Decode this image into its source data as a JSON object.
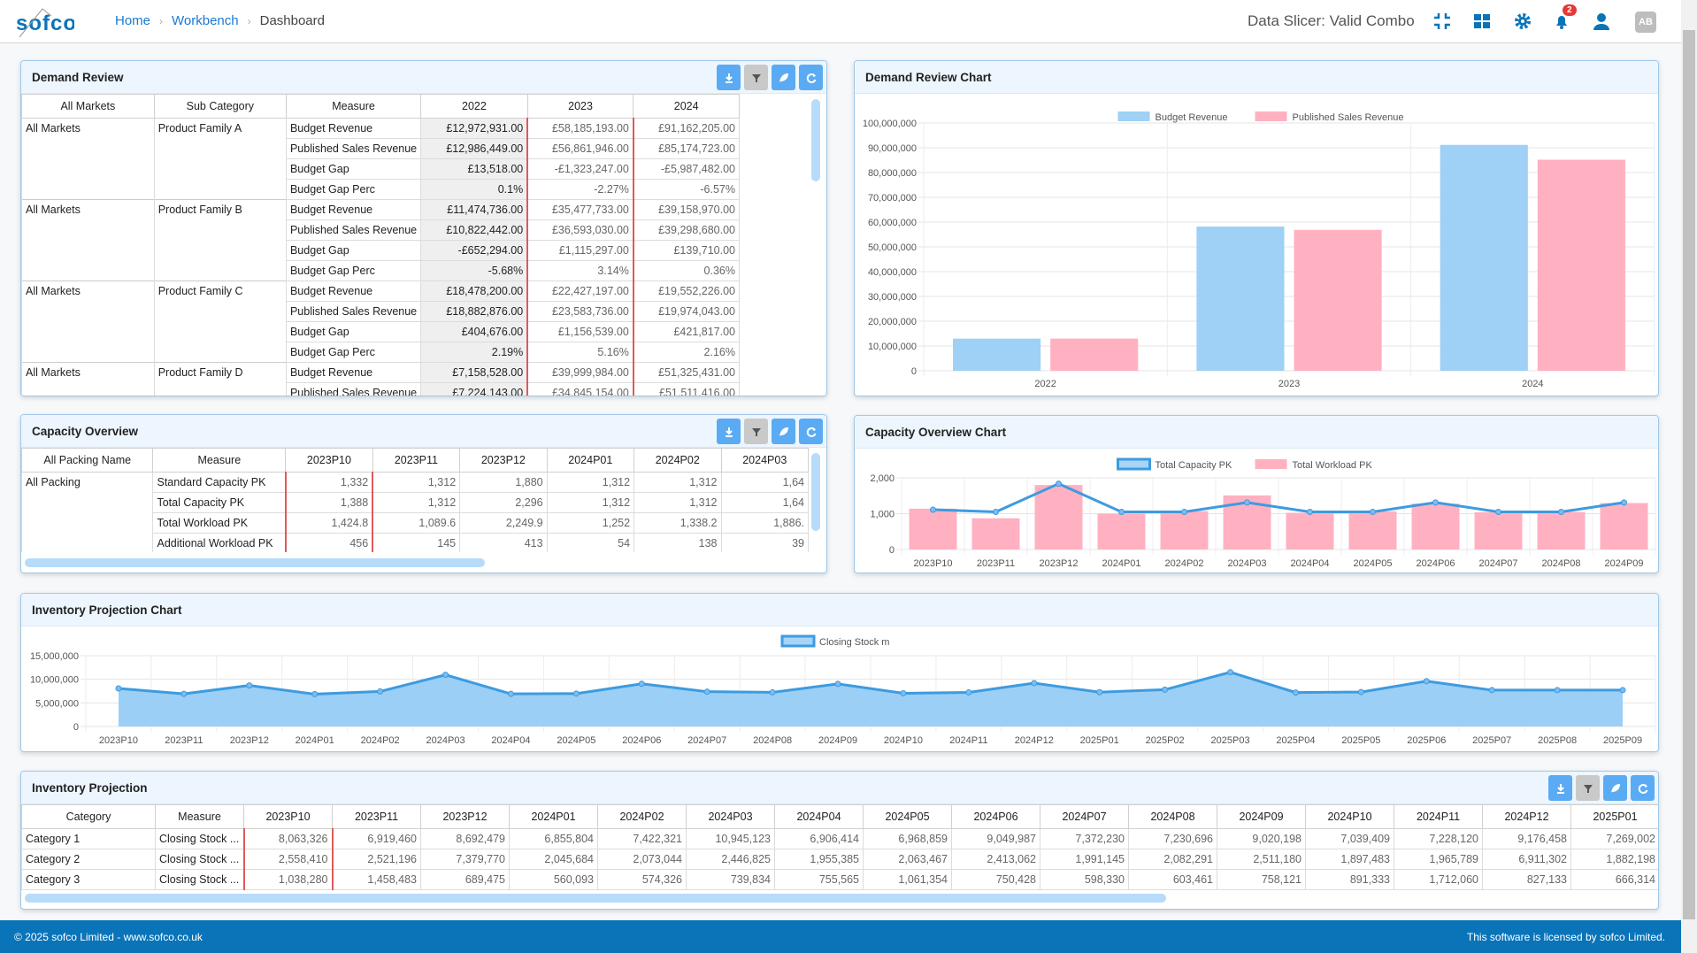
{
  "header": {
    "logo_text": "sofco",
    "breadcrumb": [
      "Home",
      "Workbench",
      "Dashboard"
    ],
    "slicer": "Data Slicer: Valid Combo",
    "notifications": "2",
    "avatar": "AB",
    "icons": [
      "compress-icon",
      "grid-icon",
      "gear-icon",
      "bell-icon",
      "user-icon"
    ]
  },
  "demand_review": {
    "title": "Demand Review",
    "columns": [
      "All Markets",
      "Sub Category",
      "Measure",
      "2022",
      "2023",
      "2024"
    ],
    "groups": [
      {
        "market": "All Markets",
        "sub": "Product Family A",
        "rows": [
          [
            "Budget Revenue",
            "£12,972,931.00",
            "£58,185,193.00",
            "£91,162,205.00"
          ],
          [
            "Published Sales Revenue",
            "£12,986,449.00",
            "£56,861,946.00",
            "£85,174,723.00"
          ],
          [
            "Budget Gap",
            "£13,518.00",
            "-£1,323,247.00",
            "-£5,987,482.00"
          ],
          [
            "Budget Gap Perc",
            "0.1%",
            "-2.27%",
            "-6.57%"
          ]
        ]
      },
      {
        "market": "All Markets",
        "sub": "Product Family B",
        "rows": [
          [
            "Budget Revenue",
            "£11,474,736.00",
            "£35,477,733.00",
            "£39,158,970.00"
          ],
          [
            "Published Sales Revenue",
            "£10,822,442.00",
            "£36,593,030.00",
            "£39,298,680.00"
          ],
          [
            "Budget Gap",
            "-£652,294.00",
            "£1,115,297.00",
            "£139,710.00"
          ],
          [
            "Budget Gap Perc",
            "-5.68%",
            "3.14%",
            "0.36%"
          ]
        ]
      },
      {
        "market": "All Markets",
        "sub": "Product Family C",
        "rows": [
          [
            "Budget Revenue",
            "£18,478,200.00",
            "£22,427,197.00",
            "£19,552,226.00"
          ],
          [
            "Published Sales Revenue",
            "£18,882,876.00",
            "£23,583,736.00",
            "£19,974,043.00"
          ],
          [
            "Budget Gap",
            "£404,676.00",
            "£1,156,539.00",
            "£421,817.00"
          ],
          [
            "Budget Gap Perc",
            "2.19%",
            "5.16%",
            "2.16%"
          ]
        ]
      },
      {
        "market": "All Markets",
        "sub": "Product Family D",
        "rows": [
          [
            "Budget Revenue",
            "£7,158,528.00",
            "£39,999,984.00",
            "£51,325,431.00"
          ],
          [
            "Published Sales Revenue",
            "£7,224,143.00",
            "£34,845,154.00",
            "£51,511,416.00"
          ]
        ]
      }
    ]
  },
  "capacity": {
    "title": "Capacity Overview",
    "columns": [
      "All Packing Name",
      "Measure",
      "2023P10",
      "2023P11",
      "2023P12",
      "2024P01",
      "2024P02",
      "2024P03"
    ],
    "group": "All Packing",
    "rows": [
      [
        "Standard Capacity PK",
        "1,332",
        "1,312",
        "1,880",
        "1,312",
        "1,312",
        "1,64"
      ],
      [
        "Total Capacity PK",
        "1,388",
        "1,312",
        "2,296",
        "1,312",
        "1,312",
        "1,64"
      ],
      [
        "Total Workload PK",
        "1,424.8",
        "1,089.6",
        "2,249.9",
        "1,252",
        "1,338.2",
        "1,886."
      ],
      [
        "Additional Workload PK",
        "456",
        "145",
        "413",
        "54",
        "138",
        "39"
      ]
    ]
  },
  "inventory": {
    "title": "Inventory Projection",
    "columns": [
      "Category",
      "Measure",
      "2023P10",
      "2023P11",
      "2023P12",
      "2024P01",
      "2024P02",
      "2024P03",
      "2024P04",
      "2024P05",
      "2024P06",
      "2024P07",
      "2024P08",
      "2024P09",
      "2024P10",
      "2024P11",
      "2024P12",
      "2025P01"
    ],
    "rows": [
      [
        "Category 1",
        "Closing Stock ...",
        "8,063,326",
        "6,919,460",
        "8,692,479",
        "6,855,804",
        "7,422,321",
        "10,945,123",
        "6,906,414",
        "6,968,859",
        "9,049,987",
        "7,372,230",
        "7,230,696",
        "9,020,198",
        "7,039,409",
        "7,228,120",
        "9,176,458",
        "7,269,002"
      ],
      [
        "Category 2",
        "Closing Stock ...",
        "2,558,410",
        "2,521,196",
        "7,379,770",
        "2,045,684",
        "2,073,044",
        "2,446,825",
        "1,955,385",
        "2,063,467",
        "2,413,062",
        "1,991,145",
        "2,082,291",
        "2,511,180",
        "1,897,483",
        "1,965,789",
        "6,911,302",
        "1,882,198"
      ],
      [
        "Category 3",
        "Closing Stock ...",
        "1,038,280",
        "1,458,483",
        "689,475",
        "560,093",
        "574,326",
        "739,834",
        "755,565",
        "1,061,354",
        "750,428",
        "598,330",
        "603,461",
        "758,121",
        "891,333",
        "1,712,060",
        "827,133",
        "666,314"
      ]
    ]
  },
  "footer": {
    "left": "© 2025 sofco Limited - www.sofco.co.uk",
    "right": "This software is licensed by sofco Limited."
  },
  "chart_data": [
    {
      "title": "Demand Review Chart",
      "type": "bar",
      "categories": [
        "2022",
        "2023",
        "2024"
      ],
      "series": [
        {
          "name": "Budget Revenue",
          "color": "#9fd0f5",
          "values": [
            12972931,
            58185193,
            91162205
          ]
        },
        {
          "name": "Published Sales Revenue",
          "color": "#ffb1c1",
          "values": [
            12986449,
            56861946,
            85174723
          ]
        }
      ],
      "ylim": [
        0,
        100000000
      ],
      "yticks": [
        "0",
        "10,000,000",
        "20,000,000",
        "30,000,000",
        "40,000,000",
        "50,000,000",
        "60,000,000",
        "70,000,000",
        "80,000,000",
        "90,000,000",
        "100,000,000"
      ],
      "legend": "top"
    },
    {
      "title": "Capacity Overview Chart",
      "type": "bar+line",
      "categories": [
        "2023P10",
        "2023P11",
        "2023P12",
        "2024P01",
        "2024P02",
        "2024P03",
        "2024P04",
        "2024P05",
        "2024P06",
        "2024P07",
        "2024P08",
        "2024P09"
      ],
      "series": [
        {
          "name": "Total Capacity PK",
          "type": "line",
          "color": "#3d9be0",
          "values": [
            1388,
            1312,
            2296,
            1312,
            1312,
            1640,
            1312,
            1312,
            1640,
            1312,
            1312,
            1640
          ]
        },
        {
          "name": "Total Workload PK",
          "type": "bar",
          "color": "#ffb1c1",
          "values": [
            1424.8,
            1089.6,
            2249.9,
            1252,
            1338.2,
            1886,
            1280,
            1330,
            1600,
            1300,
            1310,
            1620
          ]
        }
      ],
      "ylim": [
        0,
        2500
      ],
      "yticks": [
        "0",
        "1,000",
        "2,000"
      ],
      "legend": "top"
    },
    {
      "title": "Inventory Projection Chart",
      "type": "area",
      "categories": [
        "2023P10",
        "2023P11",
        "2023P12",
        "2024P01",
        "2024P02",
        "2024P03",
        "2024P04",
        "2024P05",
        "2024P06",
        "2024P07",
        "2024P08",
        "2024P09",
        "2024P10",
        "2024P11",
        "2024P12",
        "2025P01",
        "2025P02",
        "2025P03",
        "2025P04",
        "2025P05",
        "2025P06",
        "2025P07",
        "2025P08",
        "2025P09"
      ],
      "series": [
        {
          "name": "Closing Stock m",
          "color": "#3d9be0",
          "values": [
            8063326,
            6919460,
            8692479,
            6855804,
            7422321,
            10945123,
            6906414,
            6968859,
            9049987,
            7372230,
            7230696,
            9020198,
            7039409,
            7228120,
            9176458,
            7269002,
            7800000,
            11500000,
            7200000,
            7300000,
            9600000,
            7700000,
            7700000,
            7700000
          ]
        }
      ],
      "ylim": [
        0,
        15000000
      ],
      "yticks": [
        "0",
        "5,000,000",
        "10,000,000",
        "15,000,000"
      ],
      "legend": "top"
    }
  ]
}
